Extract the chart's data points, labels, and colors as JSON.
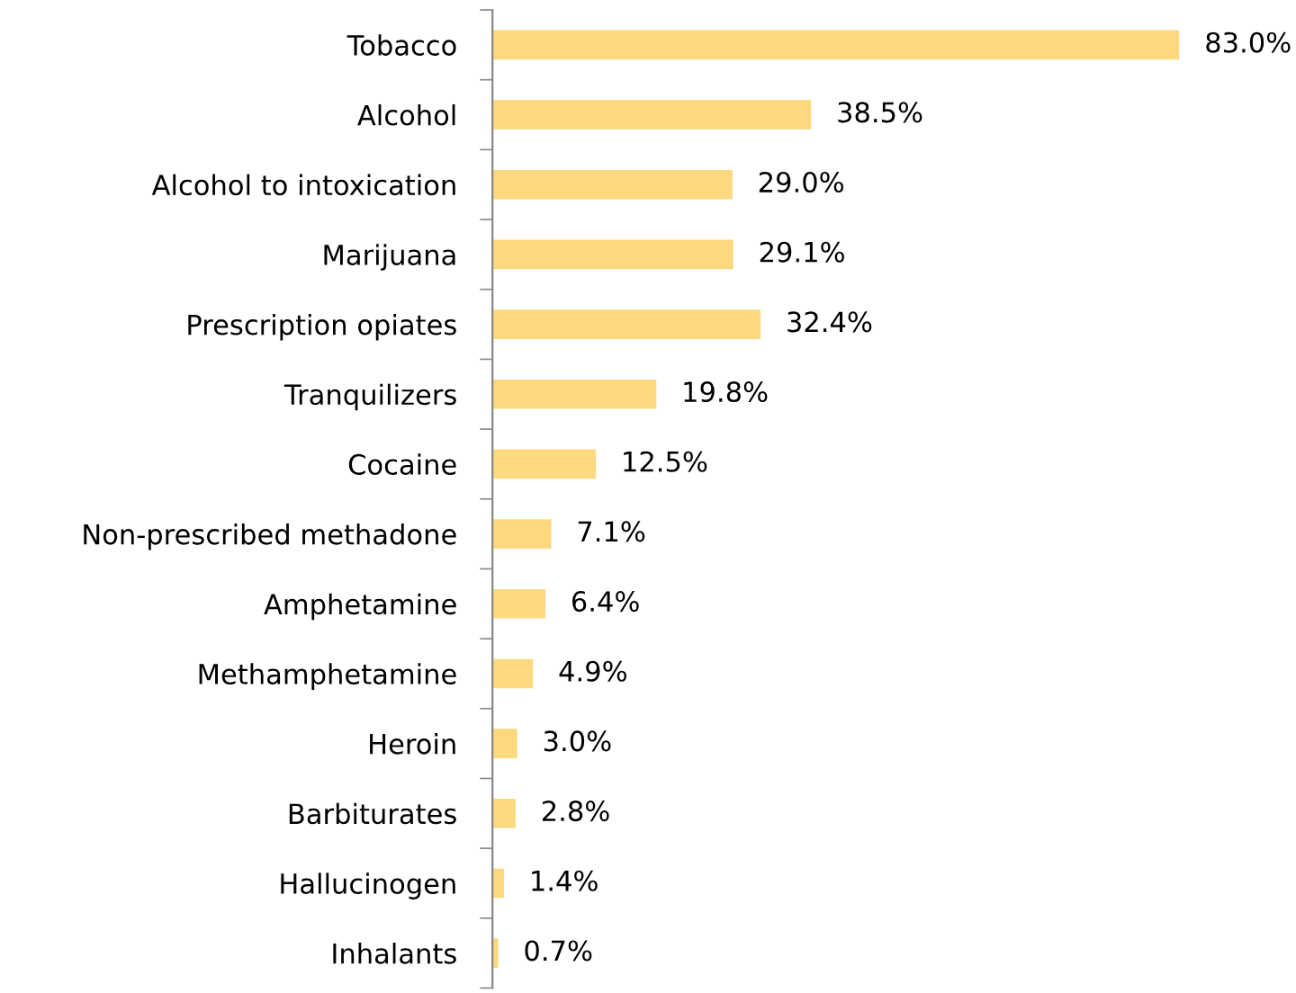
{
  "chart_data": {
    "type": "bar",
    "orientation": "horizontal",
    "categories": [
      "Tobacco",
      "Alcohol",
      "Alcohol to intoxication",
      "Marijuana",
      "Prescription opiates",
      "Tranquilizers",
      "Cocaine",
      "Non-prescribed methadone",
      "Amphetamine",
      "Methamphetamine",
      "Heroin",
      "Barbiturates",
      "Hallucinogen",
      "Inhalants"
    ],
    "values": [
      83.0,
      38.5,
      29.0,
      29.1,
      32.4,
      19.8,
      12.5,
      7.1,
      6.4,
      4.9,
      3.0,
      2.8,
      1.4,
      0.7
    ],
    "value_labels": [
      "83.0%",
      "38.5%",
      "29.0%",
      "29.1%",
      "32.4%",
      "19.8%",
      "12.5%",
      "7.1%",
      "6.4%",
      "4.9%",
      "3.0%",
      "2.8%",
      "1.4%",
      "0.7%"
    ],
    "color": "#fcd97f",
    "grid": false,
    "legend": false
  }
}
